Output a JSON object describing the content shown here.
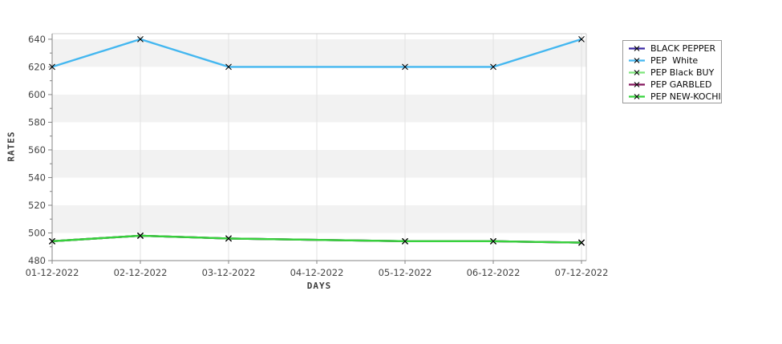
{
  "chart_data": {
    "type": "line",
    "title": "",
    "xlabel": "DAYS",
    "ylabel": "RATES",
    "categories": [
      "01-12-2022",
      "02-12-2022",
      "03-12-2022",
      "04-12-2022",
      "05-12-2022",
      "06-12-2022",
      "07-12-2022"
    ],
    "ylim": [
      480,
      644
    ],
    "y_ticks": [
      480,
      500,
      520,
      540,
      560,
      580,
      600,
      620,
      640
    ],
    "y_minor_tick_step": 10,
    "grid": {
      "vertical_gridlines": true,
      "horizontal_bands": true
    },
    "band_colors": {
      "even": "#ffffff",
      "odd": "#f2f2f2"
    },
    "gridline_color": "#e2e2e2",
    "axis_color": "#858585",
    "frame_light_color": "#cccccc",
    "tick_label_color": "#454545",
    "marker": "x",
    "marker_color": "#000000",
    "legend_position": "right",
    "missing_data_note": "no data points on 04-12-2022; lines connect straight across",
    "series": [
      {
        "name": "BLACK PEPPER",
        "color": "#3a28a5",
        "values": [
          494,
          498,
          496,
          null,
          494,
          494,
          493
        ]
      },
      {
        "name": "PEP  White",
        "color": "#44b7f0",
        "values": [
          620,
          640,
          620,
          null,
          620,
          620,
          640
        ]
      },
      {
        "name": "PEP Black BUY",
        "color": "#7de57b",
        "values": [
          494,
          498,
          496,
          null,
          494,
          494,
          493
        ]
      },
      {
        "name": "PEP GARBLED",
        "color": "#84155c",
        "values": [
          494,
          498,
          496,
          null,
          494,
          494,
          493
        ]
      },
      {
        "name": "PEP NEW-KOCHI",
        "color": "#36d33c",
        "values": [
          494,
          498,
          496,
          null,
          494,
          494,
          493
        ]
      }
    ]
  }
}
